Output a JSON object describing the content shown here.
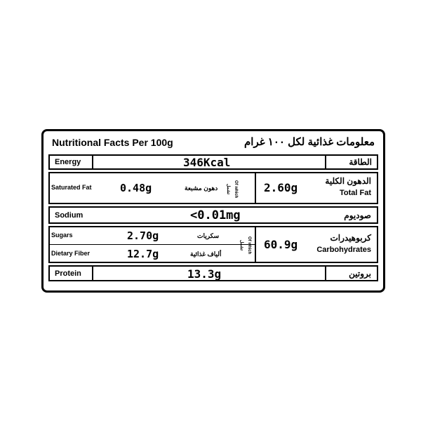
{
  "header": {
    "title_en": "Nutritional Facts Per 100g",
    "title_ar": "معلومات غذائية لكل ١٠٠ غرام"
  },
  "energy": {
    "label_en": "Energy",
    "label_ar": "الطاقة",
    "value": "346Kcal"
  },
  "fat": {
    "saturated_label_en": "Saturated Fat",
    "saturated_label_ar": "دهون مشبعة",
    "saturated_value": "0.48g",
    "of_which_ar": "تشمل",
    "of_which_en": "Of which",
    "total_label_ar": "الدهون الكلية",
    "total_label_en": "Total Fat",
    "total_value": "2.60g"
  },
  "sodium": {
    "label_en": "Sodium",
    "label_ar": "صوديوم",
    "value": "<0.01mg"
  },
  "carbs": {
    "sugars_label_en": "Sugars",
    "sugars_label_ar": "سكريات",
    "sugars_value": "2.70g",
    "fiber_label_en": "Dietary Fiber",
    "fiber_label_ar": "ألياف غذائية",
    "fiber_value": "12.7g",
    "of_which_ar": "تشمل",
    "of_which_en": "Of which",
    "total_label_ar": "كربوهيدرات",
    "total_label_en": "Carbohydrates",
    "total_value": "60.9g"
  },
  "protein": {
    "label_en": "Protein",
    "label_ar": "بروتين",
    "value": "13.3g"
  }
}
